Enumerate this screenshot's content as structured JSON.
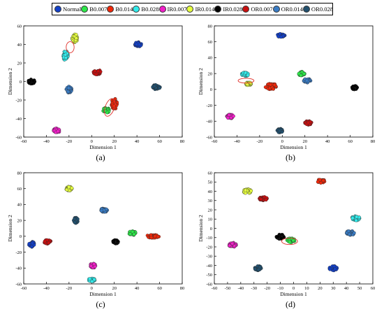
{
  "legend": [
    {
      "label": "Normal",
      "color": "#1340c8"
    },
    {
      "label": "B0.007",
      "color": "#2ee84a"
    },
    {
      "label": "B0.014",
      "color": "#f0280a"
    },
    {
      "label": "B0.028",
      "color": "#33ecec"
    },
    {
      "label": "IR0.007",
      "color": "#f020c8"
    },
    {
      "label": "IR0.014",
      "color": "#e6ff40"
    },
    {
      "label": "IR0.028",
      "color": "#000000"
    },
    {
      "label": "OR0.007",
      "color": "#c81010"
    },
    {
      "label": "OR0.014",
      "color": "#3a7cc4"
    },
    {
      "label": "OR0.028",
      "color": "#22506e"
    }
  ],
  "chart_data": [
    {
      "type": "scatter",
      "caption": "(a)",
      "xlabel": "Dimension 1",
      "ylabel": "Dimension 2",
      "xlim": [
        -60,
        80
      ],
      "ylim": [
        -60,
        60
      ],
      "xticks": [
        -60,
        -40,
        -20,
        0,
        20,
        40,
        60,
        80
      ],
      "yticks": [
        -60,
        -40,
        -20,
        0,
        20,
        40,
        60
      ],
      "clusters": [
        {
          "class": "Normal",
          "center": [
            41,
            40
          ],
          "spread": [
            3,
            2.5
          ]
        },
        {
          "class": "B0.007",
          "center": [
            13,
            -31
          ],
          "spread": [
            3,
            3
          ]
        },
        {
          "class": "B0.014",
          "center": [
            20,
            -24
          ],
          "spread": [
            2.5,
            6
          ]
        },
        {
          "class": "B0.028",
          "center": [
            -23,
            28
          ],
          "spread": [
            2.5,
            5
          ]
        },
        {
          "class": "IR0.007",
          "center": [
            -31,
            -53
          ],
          "spread": [
            3,
            2.5
          ]
        },
        {
          "class": "IR0.014",
          "center": [
            -15,
            47
          ],
          "spread": [
            2.5,
            5
          ]
        },
        {
          "class": "IR0.028",
          "center": [
            -53,
            0
          ],
          "spread": [
            3,
            2.5
          ]
        },
        {
          "class": "OR0.007",
          "center": [
            5,
            10
          ],
          "spread": [
            3.5,
            2.5
          ]
        },
        {
          "class": "OR0.014",
          "center": [
            -20,
            -9
          ],
          "spread": [
            2.5,
            3.5
          ]
        },
        {
          "class": "OR0.028",
          "center": [
            57,
            -6
          ],
          "spread": [
            3.5,
            2.5
          ]
        }
      ],
      "ellipses": [
        {
          "center": [
            -19,
            37
          ],
          "radius": [
            3.5,
            6
          ],
          "rotate": 0
        },
        {
          "center": [
            16,
            -28
          ],
          "radius": [
            4,
            10
          ],
          "rotate": 20
        }
      ]
    },
    {
      "type": "scatter",
      "caption": "(b)",
      "xlabel": "Dimension 1",
      "ylabel": "Dimension 2",
      "xlim": [
        -60,
        80
      ],
      "ylim": [
        -60,
        80
      ],
      "xticks": [
        -60,
        -40,
        -20,
        0,
        20,
        40,
        60,
        80
      ],
      "yticks": [
        -60,
        -40,
        -20,
        0,
        20,
        40,
        60,
        80
      ],
      "clusters": [
        {
          "class": "Normal",
          "center": [
            -1,
            68
          ],
          "spread": [
            3.5,
            2
          ]
        },
        {
          "class": "B0.007",
          "center": [
            17,
            20
          ],
          "spread": [
            3,
            2.5
          ]
        },
        {
          "class": "B0.014",
          "center": [
            -10,
            4
          ],
          "spread": [
            5,
            4
          ]
        },
        {
          "class": "B0.028",
          "center": [
            -33,
            19
          ],
          "spread": [
            3,
            2.5
          ]
        },
        {
          "class": "IR0.007",
          "center": [
            -46,
            -34
          ],
          "spread": [
            3,
            2.5
          ]
        },
        {
          "class": "IR0.014",
          "center": [
            -30,
            7
          ],
          "spread": [
            2.5,
            2
          ]
        },
        {
          "class": "IR0.028",
          "center": [
            64,
            2
          ],
          "spread": [
            2.5,
            2.5
          ]
        },
        {
          "class": "OR0.007",
          "center": [
            23,
            -42
          ],
          "spread": [
            3,
            2.5
          ]
        },
        {
          "class": "OR0.014",
          "center": [
            22,
            11
          ],
          "spread": [
            3,
            2.5
          ]
        },
        {
          "class": "OR0.028",
          "center": [
            -2,
            -52
          ],
          "spread": [
            2.5,
            2.5
          ]
        }
      ],
      "ellipses": [
        {
          "center": [
            -32,
            11
          ],
          "radius": [
            7,
            3
          ],
          "rotate": 0
        }
      ]
    },
    {
      "type": "scatter",
      "caption": "(c)",
      "xlabel": "Dimension 1",
      "ylabel": "Dimension 2",
      "xlim": [
        -60,
        80
      ],
      "ylim": [
        -60,
        80
      ],
      "xticks": [
        -60,
        -40,
        -20,
        0,
        20,
        40,
        60,
        80
      ],
      "yticks": [
        -60,
        -40,
        -20,
        0,
        20,
        40,
        60,
        80
      ],
      "clusters": [
        {
          "class": "Normal",
          "center": [
            -53,
            -10
          ],
          "spread": [
            2.5,
            3.5
          ]
        },
        {
          "class": "B0.007",
          "center": [
            36,
            4
          ],
          "spread": [
            3,
            2.5
          ]
        },
        {
          "class": "B0.014",
          "center": [
            54,
            0
          ],
          "spread": [
            6,
            2
          ]
        },
        {
          "class": "B0.028",
          "center": [
            0,
            -55
          ],
          "spread": [
            3,
            2
          ]
        },
        {
          "class": "IR0.007",
          "center": [
            1,
            -37
          ],
          "spread": [
            2.5,
            3
          ]
        },
        {
          "class": "IR0.014",
          "center": [
            -20,
            60
          ],
          "spread": [
            3,
            2.5
          ]
        },
        {
          "class": "IR0.028",
          "center": [
            21,
            -7
          ],
          "spread": [
            2.5,
            2.5
          ]
        },
        {
          "class": "OR0.007",
          "center": [
            -39,
            -7
          ],
          "spread": [
            3,
            2.5
          ]
        },
        {
          "class": "OR0.014",
          "center": [
            11,
            33
          ],
          "spread": [
            3,
            2.5
          ]
        },
        {
          "class": "OR0.028",
          "center": [
            -14,
            20
          ],
          "spread": [
            2,
            3.5
          ]
        }
      ],
      "ellipses": []
    },
    {
      "type": "scatter",
      "caption": "(d)",
      "xlabel": "Dimension 1",
      "ylabel": "Dimension 2",
      "xlim": [
        -60,
        60
      ],
      "ylim": [
        -60,
        60
      ],
      "xticks": [
        -60,
        -50,
        -40,
        -30,
        -20,
        -10,
        0,
        10,
        20,
        30,
        40,
        50,
        60
      ],
      "yticks": [
        -60,
        -50,
        -40,
        -30,
        -20,
        -10,
        0,
        10,
        20,
        30,
        40,
        50,
        60
      ],
      "clusters": [
        {
          "class": "Normal",
          "center": [
            30,
            -43
          ],
          "spread": [
            3,
            2.5
          ]
        },
        {
          "class": "B0.007",
          "center": [
            -2,
            -13
          ],
          "spread": [
            3,
            2.5
          ]
        },
        {
          "class": "B0.014",
          "center": [
            21,
            51
          ],
          "spread": [
            3,
            2
          ]
        },
        {
          "class": "B0.028",
          "center": [
            47,
            11
          ],
          "spread": [
            3,
            2.5
          ]
        },
        {
          "class": "IR0.007",
          "center": [
            -46,
            -18
          ],
          "spread": [
            3,
            2.5
          ]
        },
        {
          "class": "IR0.014",
          "center": [
            -35,
            40
          ],
          "spread": [
            3,
            2.5
          ]
        },
        {
          "class": "IR0.028",
          "center": [
            -10,
            -9
          ],
          "spread": [
            3,
            2.5
          ]
        },
        {
          "class": "OR0.007",
          "center": [
            -23,
            32
          ],
          "spread": [
            3,
            2
          ]
        },
        {
          "class": "OR0.014",
          "center": [
            43,
            -5
          ],
          "spread": [
            3,
            2.5
          ]
        },
        {
          "class": "OR0.028",
          "center": [
            -27,
            -43
          ],
          "spread": [
            2.5,
            2.5
          ]
        }
      ],
      "ellipses": [
        {
          "center": [
            -3,
            -14
          ],
          "radius": [
            6,
            3.5
          ],
          "rotate": 0
        }
      ]
    }
  ]
}
